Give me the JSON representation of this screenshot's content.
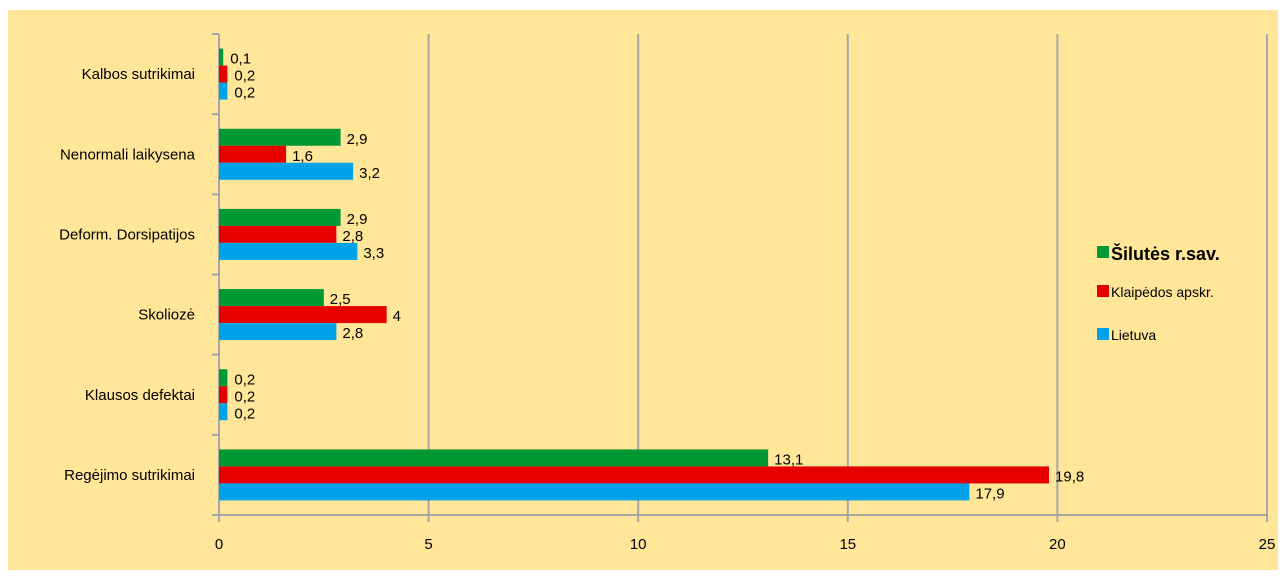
{
  "colors": {
    "background": "#ffe699",
    "gridline": "#a6a6a6",
    "series": [
      "#009933",
      "#e60000",
      "#00a2e8"
    ]
  },
  "chart_data": {
    "type": "bar",
    "orientation": "horizontal",
    "categories": [
      "Kalbos sutrikimai",
      "Nenormali laikysena",
      "Deform. Dorsipatijos",
      "Skoliozė",
      "Klausos defektai",
      "Regėjimo sutrikimai"
    ],
    "series": [
      {
        "name": "Šilutės r.sav.",
        "values": [
          0.1,
          2.9,
          2.9,
          2.5,
          0.2,
          13.1
        ],
        "labels": [
          "0,1",
          "2,9",
          "2,9",
          "2,5",
          "0,2",
          "13,1"
        ]
      },
      {
        "name": "Klaipėdos apskr.",
        "values": [
          0.2,
          1.6,
          2.8,
          4,
          0.2,
          19.8
        ],
        "labels": [
          "0,2",
          "1,6",
          "2,8",
          "4",
          "0,2",
          "19,8"
        ]
      },
      {
        "name": "Lietuva",
        "values": [
          0.2,
          3.2,
          3.3,
          2.8,
          0.2,
          17.9
        ],
        "labels": [
          "0,2",
          "3,2",
          "3,3",
          "2,8",
          "0,2",
          "17,9"
        ]
      }
    ],
    "xlim": [
      0,
      25
    ],
    "xticks": [
      0,
      5,
      10,
      15,
      20,
      25
    ],
    "xtick_labels": [
      "0",
      "5",
      "10",
      "15",
      "20",
      "25"
    ],
    "grid": "vertical",
    "legend_position": "right"
  }
}
